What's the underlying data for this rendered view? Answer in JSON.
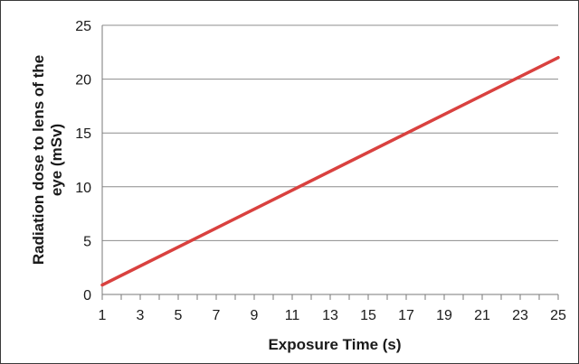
{
  "chart_data": {
    "type": "line",
    "title": "",
    "xlabel": "Exposure Time (s)",
    "ylabel_lines": [
      "Radiation dose to lens of the",
      "eye (mSv)"
    ],
    "x_tick_labels": [
      "1",
      "3",
      "5",
      "7",
      "9",
      "11",
      "13",
      "15",
      "17",
      "19",
      "21",
      "23",
      "25"
    ],
    "y_tick_labels": [
      "0",
      "5",
      "10",
      "15",
      "20",
      "25"
    ],
    "xlim": [
      1,
      25
    ],
    "ylim": [
      0,
      25
    ],
    "y_grid": true,
    "series": [
      {
        "color": "#d9413f",
        "x": [
          1,
          25
        ],
        "y": [
          0.88,
          22.0
        ]
      }
    ]
  }
}
